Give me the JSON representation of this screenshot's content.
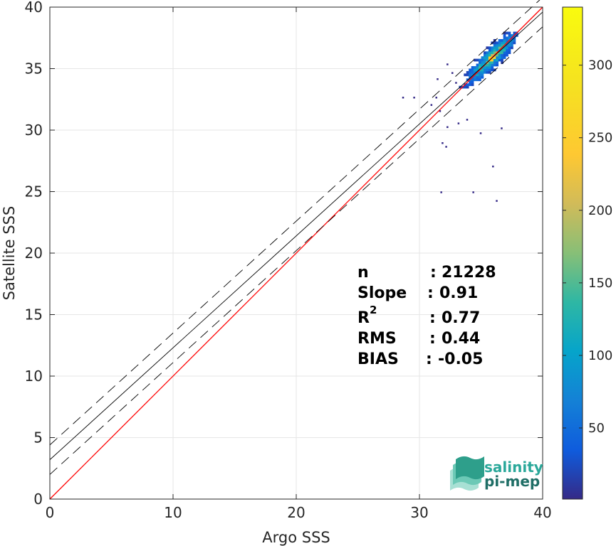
{
  "chart_data": {
    "type": "heatmap",
    "xlabel": "Argo SSS",
    "ylabel": "Satellite SSS",
    "xlim": [
      0,
      40
    ],
    "ylim": [
      0,
      40
    ],
    "xticks": [
      0,
      10,
      20,
      30,
      40
    ],
    "yticks": [
      0,
      5,
      10,
      15,
      20,
      25,
      30,
      35,
      40
    ],
    "grid": true,
    "colorbar": {
      "range": [
        1,
        340
      ],
      "ticks": [
        50,
        100,
        150,
        200,
        250,
        300
      ],
      "colormap": "parula"
    },
    "lines": [
      {
        "name": "identity",
        "slope": 1.0,
        "intercept": 0.0,
        "style": "solid",
        "color": "#ff0000"
      },
      {
        "name": "fit",
        "slope": 0.91,
        "intercept": 3.2,
        "style": "solid",
        "color": "#000000"
      },
      {
        "name": "fit-upper",
        "slope": 0.91,
        "intercept": 4.4,
        "style": "dashed",
        "color": "#000000"
      },
      {
        "name": "fit-lower",
        "slope": 0.91,
        "intercept": 2.0,
        "style": "dashed",
        "color": "#000000"
      }
    ],
    "density_center": {
      "x": 35.8,
      "y": 35.8,
      "peak_count": 340
    },
    "outliers": [
      {
        "x": 31.3,
        "y": 32.6
      },
      {
        "x": 28.6,
        "y": 32.6
      },
      {
        "x": 29.5,
        "y": 32.6
      },
      {
        "x": 30.9,
        "y": 32.0
      },
      {
        "x": 31.6,
        "y": 31.5
      },
      {
        "x": 33.1,
        "y": 30.5
      },
      {
        "x": 32.2,
        "y": 30.2
      },
      {
        "x": 33.8,
        "y": 30.8
      },
      {
        "x": 36.6,
        "y": 30.1
      },
      {
        "x": 34.9,
        "y": 29.7
      },
      {
        "x": 32.1,
        "y": 28.6
      },
      {
        "x": 31.8,
        "y": 28.9
      },
      {
        "x": 35.9,
        "y": 27.0
      },
      {
        "x": 31.7,
        "y": 24.9
      },
      {
        "x": 34.3,
        "y": 24.9
      },
      {
        "x": 36.2,
        "y": 24.2
      },
      {
        "x": 31.4,
        "y": 34.1
      },
      {
        "x": 32.2,
        "y": 35.3
      },
      {
        "x": 32.6,
        "y": 34.6
      },
      {
        "x": 32.9,
        "y": 33.8
      }
    ],
    "stats": [
      {
        "label": "n",
        "sep": ": ",
        "value": "21228"
      },
      {
        "label": "Slope",
        "sep": ": ",
        "value": "0.91"
      },
      {
        "label": "R",
        "sup": "2",
        "sep": ": ",
        "value": "0.77"
      },
      {
        "label": "RMS",
        "sep": ": ",
        "value": "0.44"
      },
      {
        "label": "BIAS",
        "sep": ": ",
        "value": "-0.05"
      }
    ]
  },
  "logo": {
    "line1": "salinity",
    "line2": "pi-mep"
  }
}
